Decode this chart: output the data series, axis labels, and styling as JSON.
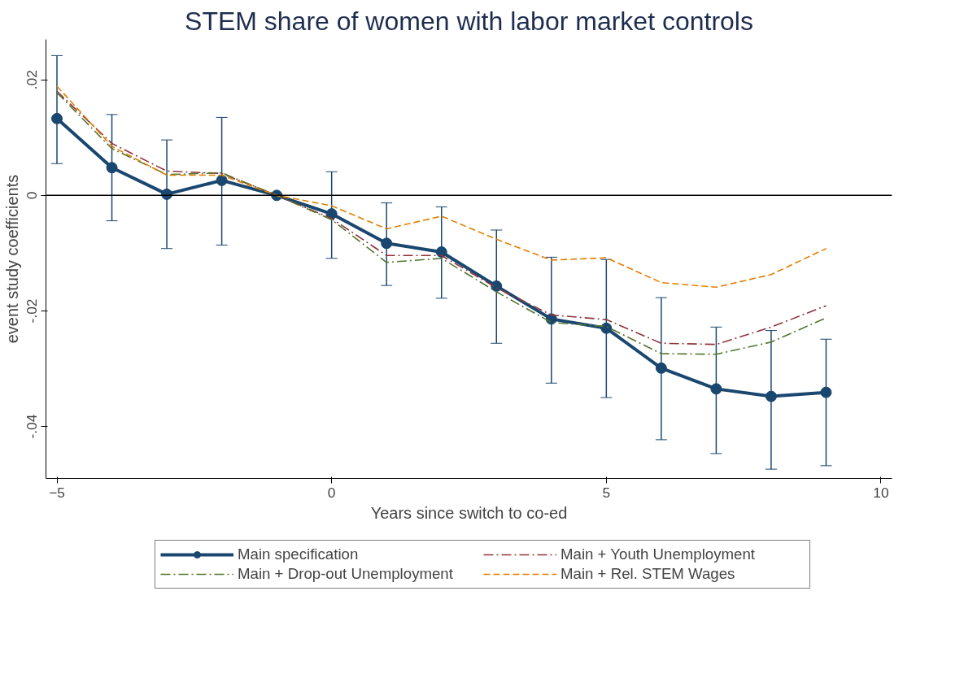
{
  "chart_data": {
    "type": "line",
    "title": "STEM share of women with labor market controls",
    "xlabel": "Years since switch to co-ed",
    "ylabel": "event study coefficients",
    "x": [
      -5,
      -4,
      -3,
      -2,
      -1,
      0,
      1,
      2,
      3,
      4,
      5,
      6,
      7,
      8,
      9
    ],
    "xlim": [
      -5.2,
      10.2
    ],
    "xticks": [
      -5,
      0,
      5,
      10
    ],
    "ylim": [
      -0.049,
      0.027
    ],
    "yticks": [
      {
        "value": 0.02,
        "label": ".02"
      },
      {
        "value": 0,
        "label": "0"
      },
      {
        "value": -0.02,
        "label": "-.02"
      },
      {
        "value": -0.04,
        "label": "-.04"
      }
    ],
    "grid": false,
    "legend": "bottom",
    "ref_lines": [
      {
        "axis": "y",
        "value": 0,
        "color": "#000000"
      }
    ],
    "series": [
      {
        "name": "Main specification",
        "color": "#1a476f",
        "marker": "circle",
        "line_style": "solid",
        "values": [
          0.0133,
          0.0048,
          0.0002,
          0.0026,
          0,
          -0.0032,
          -0.0083,
          -0.0098,
          -0.0157,
          -0.0214,
          -0.023,
          -0.0299,
          -0.0335,
          -0.0348,
          -0.0341
        ],
        "errors": [
          [
            0.0055,
            0.0242
          ],
          [
            -0.0044,
            0.014
          ],
          [
            -0.0092,
            0.0096
          ],
          [
            -0.0086,
            0.0135
          ],
          null,
          [
            -0.0109,
            0.0041
          ],
          [
            -0.0156,
            -0.0013
          ],
          [
            -0.0178,
            -0.002
          ],
          [
            -0.0256,
            -0.006
          ],
          [
            -0.0325,
            -0.0107
          ],
          [
            -0.035,
            -0.0111
          ],
          [
            -0.0423,
            -0.0177
          ],
          [
            -0.0447,
            -0.0228
          ],
          [
            -0.0474,
            -0.0234
          ],
          [
            -0.0468,
            -0.0249
          ]
        ]
      },
      {
        "name": "Main + Youth Unemployment",
        "color": "#90353b",
        "marker": "none",
        "line_style": "dashdot",
        "values": [
          0.018,
          0.009,
          0.0042,
          0.0038,
          0,
          -0.004,
          -0.0104,
          -0.0104,
          -0.016,
          -0.0207,
          -0.0215,
          -0.0256,
          -0.0258,
          -0.0228,
          -0.0191
        ]
      },
      {
        "name": "Main + Drop-out Unemployment",
        "color": "#55752f",
        "marker": "none",
        "line_style": "dashdot",
        "values": [
          0.0178,
          0.0081,
          0.0036,
          0.0039,
          0,
          -0.0042,
          -0.0116,
          -0.0109,
          -0.0167,
          -0.022,
          -0.0227,
          -0.0274,
          -0.0275,
          -0.0254,
          -0.0212
        ]
      },
      {
        "name": "Main + Rel. STEM Wages",
        "color": "#e37e00",
        "marker": "none",
        "line_style": "dashed",
        "values": [
          0.0189,
          0.0085,
          0.0035,
          0.0035,
          0,
          -0.0018,
          -0.0058,
          -0.0036,
          -0.0076,
          -0.0112,
          -0.0108,
          -0.0151,
          -0.0159,
          -0.0137,
          -0.0092
        ]
      }
    ]
  }
}
